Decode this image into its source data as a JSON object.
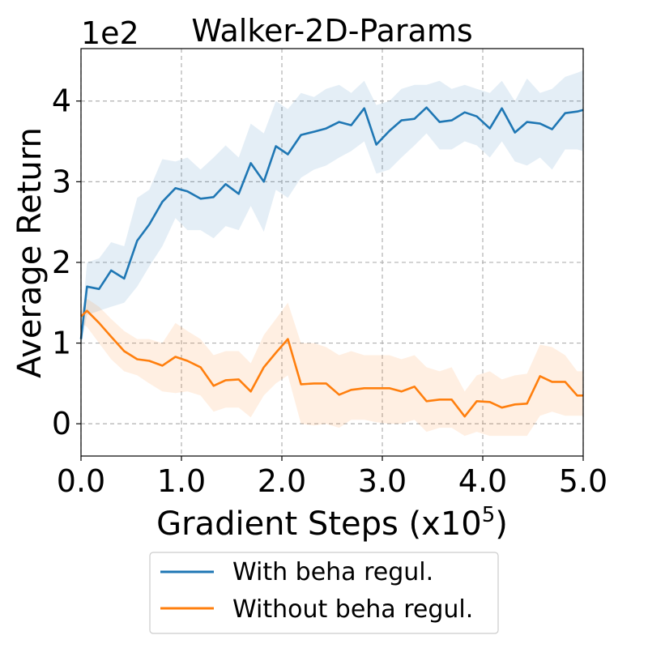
{
  "chart_data": {
    "type": "line",
    "title": "Walker-2D-Params",
    "y_offset_label": "1e2",
    "xlabel_prefix": "Gradient Steps (x10",
    "xlabel_exp": "5",
    "xlabel_suffix": ")",
    "ylabel": "Average Return",
    "xlim": [
      0,
      5
    ],
    "ylim": [
      -0.4,
      4.65
    ],
    "xticks": [
      0,
      1,
      2,
      3,
      4,
      5
    ],
    "xtick_labels": [
      "0.0",
      "1.0",
      "2.0",
      "3.0",
      "4.0",
      "5.0"
    ],
    "yticks": [
      0,
      1,
      2,
      3,
      4
    ],
    "ytick_labels": [
      "0",
      "1",
      "2",
      "3",
      "4"
    ],
    "grid": true,
    "legend_position": "below",
    "x": [
      0.0,
      0.06,
      0.18,
      0.3,
      0.43,
      0.56,
      0.68,
      0.81,
      0.94,
      1.06,
      1.19,
      1.32,
      1.44,
      1.57,
      1.69,
      1.82,
      1.94,
      2.06,
      2.19,
      2.32,
      2.44,
      2.57,
      2.69,
      2.82,
      2.94,
      3.07,
      3.19,
      3.32,
      3.44,
      3.57,
      3.69,
      3.82,
      3.94,
      4.07,
      4.19,
      4.32,
      4.44,
      4.57,
      4.69,
      4.82,
      4.94,
      5.0
    ],
    "series": [
      {
        "name": "With beha regul.",
        "color": "#1f77b4",
        "values": [
          1.05,
          1.7,
          1.67,
          1.9,
          1.8,
          2.27,
          2.47,
          2.75,
          2.92,
          2.88,
          2.79,
          2.81,
          2.97,
          2.85,
          3.23,
          3.0,
          3.44,
          3.34,
          3.58,
          3.62,
          3.66,
          3.74,
          3.7,
          3.91,
          3.46,
          3.63,
          3.76,
          3.78,
          3.92,
          3.74,
          3.76,
          3.86,
          3.81,
          3.66,
          3.91,
          3.61,
          3.74,
          3.72,
          3.65,
          3.85,
          3.87,
          3.89
        ],
        "lower": [
          0.95,
          1.35,
          1.4,
          1.45,
          1.5,
          1.7,
          1.95,
          2.2,
          2.55,
          2.4,
          2.4,
          2.3,
          2.45,
          2.4,
          2.7,
          2.38,
          2.9,
          2.8,
          3.05,
          3.15,
          3.2,
          3.3,
          3.38,
          3.5,
          3.1,
          3.15,
          3.3,
          3.45,
          3.6,
          3.4,
          3.4,
          3.5,
          3.45,
          3.3,
          3.5,
          3.25,
          3.2,
          3.3,
          3.15,
          3.4,
          3.4,
          3.38
        ],
        "upper": [
          1.15,
          2.0,
          2.05,
          2.25,
          2.2,
          2.8,
          2.9,
          3.28,
          3.25,
          3.3,
          3.15,
          3.3,
          3.45,
          3.3,
          3.72,
          3.6,
          4.0,
          3.9,
          4.1,
          4.05,
          4.15,
          4.2,
          4.1,
          4.25,
          3.95,
          4.0,
          4.15,
          4.2,
          4.2,
          4.25,
          4.15,
          4.2,
          4.15,
          4.1,
          4.25,
          4.0,
          4.28,
          4.1,
          4.15,
          4.3,
          4.35,
          4.38
        ]
      },
      {
        "name": "Without beha regul.",
        "color": "#ff7f0e",
        "values": [
          1.33,
          1.4,
          1.25,
          1.08,
          0.9,
          0.8,
          0.78,
          0.72,
          0.83,
          0.78,
          0.7,
          0.47,
          0.54,
          0.55,
          0.4,
          0.7,
          0.88,
          1.05,
          0.49,
          0.5,
          0.5,
          0.36,
          0.42,
          0.44,
          0.44,
          0.44,
          0.4,
          0.46,
          0.28,
          0.3,
          0.3,
          0.09,
          0.28,
          0.27,
          0.2,
          0.24,
          0.25,
          0.59,
          0.52,
          0.52,
          0.35,
          0.35
        ],
        "lower": [
          1.25,
          1.2,
          1.0,
          0.8,
          0.65,
          0.6,
          0.5,
          0.4,
          0.38,
          0.4,
          0.35,
          0.15,
          0.2,
          0.2,
          0.08,
          0.35,
          0.5,
          0.6,
          0.0,
          -0.02,
          0.0,
          -0.05,
          0.05,
          0.05,
          0.02,
          0.0,
          0.0,
          0.05,
          -0.1,
          -0.05,
          -0.05,
          -0.15,
          -0.1,
          -0.15,
          -0.15,
          -0.15,
          -0.15,
          0.1,
          0.15,
          0.1,
          0.1,
          0.1
        ],
        "upper": [
          1.4,
          1.55,
          1.45,
          1.3,
          1.15,
          1.05,
          1.05,
          1.0,
          1.25,
          1.15,
          1.05,
          0.85,
          0.9,
          0.9,
          0.75,
          1.1,
          1.3,
          1.5,
          1.0,
          1.0,
          0.95,
          0.85,
          0.9,
          0.85,
          0.85,
          0.85,
          0.8,
          0.85,
          0.7,
          0.65,
          0.7,
          0.4,
          0.6,
          0.65,
          0.55,
          0.6,
          0.62,
          0.98,
          0.95,
          0.85,
          0.65,
          0.65
        ]
      }
    ]
  }
}
